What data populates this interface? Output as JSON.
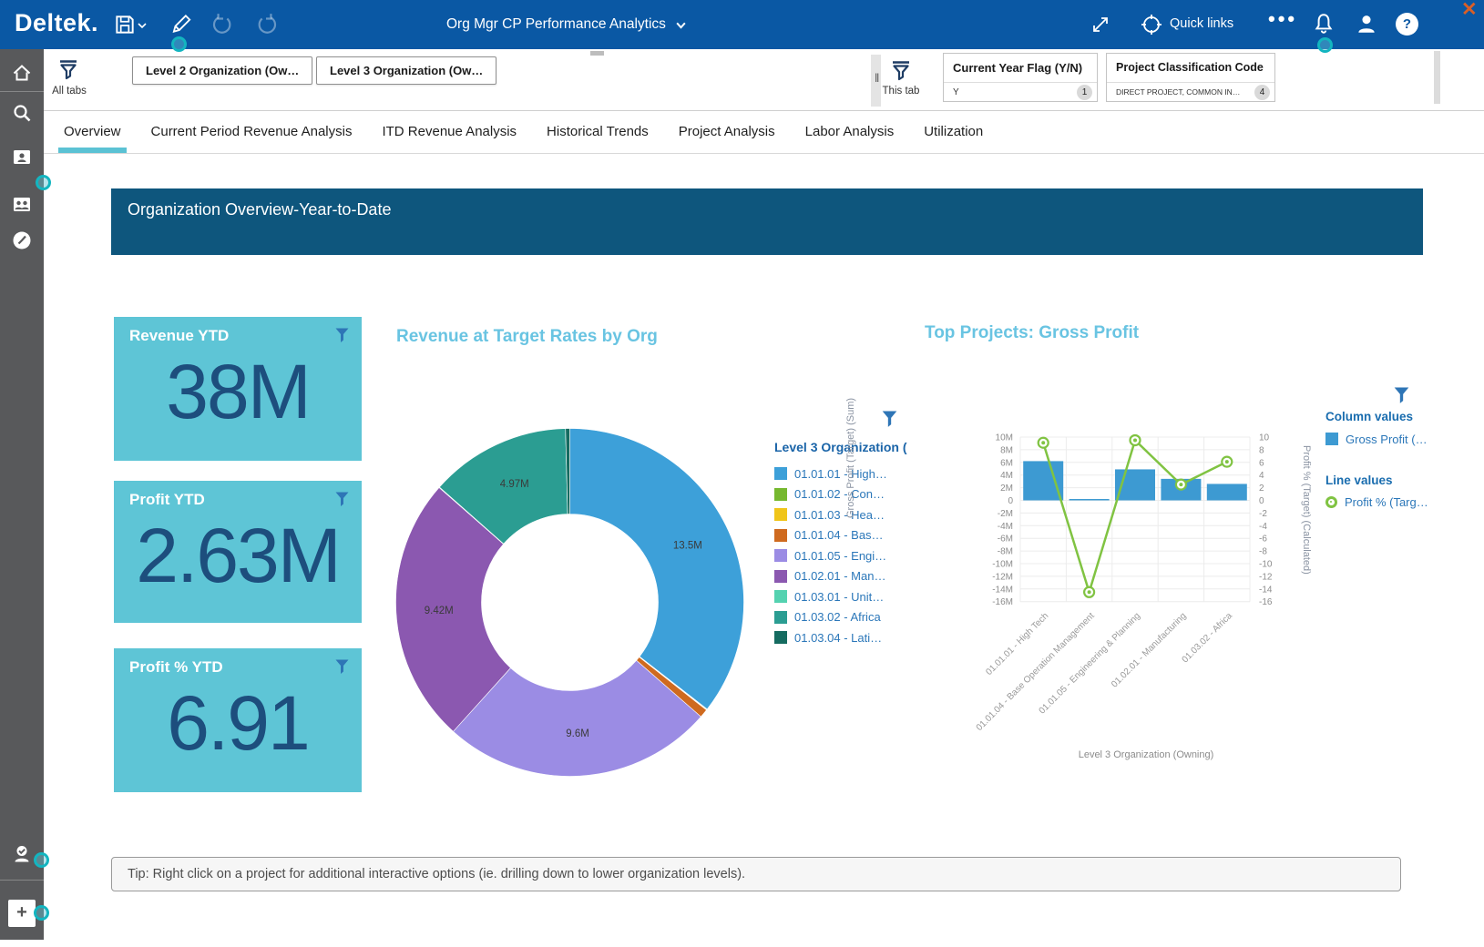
{
  "topbar": {
    "logo": "Deltek.",
    "title": "Org Mgr CP Performance Analytics",
    "quick_links_label": "Quick links"
  },
  "filter_bar": {
    "all_tabs_label": "All tabs",
    "this_tab_label": "This tab",
    "chips": [
      "Level 2 Organization (Ow…",
      "Level 3 Organization (Ow…"
    ],
    "cards": [
      {
        "title": "Current Year Flag (Y/N)",
        "value": "Y",
        "count": "1"
      },
      {
        "title": "Project Classification Code",
        "value": "DIRECT PROJECT, COMMON IN…",
        "count": "4"
      }
    ]
  },
  "tabs": {
    "active_index": 0,
    "items": [
      "Overview",
      "Current Period Revenue Analysis",
      "ITD Revenue Analysis",
      "Historical Trends",
      "Project Analysis",
      "Labor Analysis",
      "Utilization"
    ]
  },
  "banner": {
    "title": "Organization Overview-Year-to-Date"
  },
  "kpis": [
    {
      "label": "Revenue YTD",
      "value": "38M"
    },
    {
      "label": "Profit YTD",
      "value": "2.63M"
    },
    {
      "label": "Profit % YTD",
      "value": "6.91"
    }
  ],
  "tip": {
    "text": "Tip:  Right click on a project for additional interactive options (ie. drilling down to lower organization levels)."
  },
  "colors": {
    "topbar_blue": "#0a58a4",
    "banner_blue": "#0e567d",
    "kpi_teal": "#5ec5d6",
    "kpi_value_navy": "#1d4e7d",
    "accent_teal_underline": "#5bc2d4",
    "chart_title_blue": "#69c4e2",
    "legend_text_blue": "#2b77b9",
    "bar_blue": "#3d9ad2",
    "line_green": "#80c342",
    "funnel_blue": "#2e75b6",
    "sidebar_gray": "#58595b",
    "coach_mark_teal": "#13b5c0",
    "close_orange": "#d95f27"
  },
  "chart_data": [
    {
      "type": "pie",
      "title": "Revenue at Target Rates by Org",
      "legend_title": "Level 3 Organization (",
      "legend_position": "right",
      "donut": true,
      "segments": [
        {
          "label": "01.01.01 - High…",
          "value": 13.5,
          "display": "13.5M",
          "color": "#3da0d9"
        },
        {
          "label": "01.01.02 - Con…",
          "value": 0.02,
          "display": "",
          "color": "#76b82f"
        },
        {
          "label": "01.01.03 - Hea…",
          "value": 0.02,
          "display": "",
          "color": "#f0c51a"
        },
        {
          "label": "01.01.04 - Bas…",
          "value": 0.3,
          "display": "",
          "color": "#cf6a1f"
        },
        {
          "label": "01.01.05 - Engi…",
          "value": 9.6,
          "display": "9.6M",
          "color": "#9b8ce4"
        },
        {
          "label": "01.02.01 - Man…",
          "value": 9.42,
          "display": "9.42M",
          "color": "#8b58b0"
        },
        {
          "label": "01.03.01 - Unit…",
          "value": 0.02,
          "display": "",
          "color": "#54d2b0"
        },
        {
          "label": "01.03.02 - Africa",
          "value": 4.97,
          "display": "4.97M",
          "color": "#2b9d92"
        },
        {
          "label": "01.03.04 - Lati…",
          "value": 0.15,
          "display": "",
          "color": "#156b60"
        }
      ],
      "unit": "M"
    },
    {
      "type": "bar",
      "title": "Top Projects: Gross Profit",
      "categories": [
        "01.01.01 - High Tech",
        "01.01.04 - Base Operation Management",
        "01.01.05 - Engineering & Planning",
        "01.02.01 - Manufacturing",
        "01.03.02 - Africa"
      ],
      "series": [
        {
          "name": "Gross Profit (Target) (Sum)",
          "kind": "bar",
          "axis": "left",
          "unit": "M",
          "color": "#3d9ad2",
          "values": [
            6.2,
            0.15,
            4.9,
            3.4,
            2.6
          ]
        },
        {
          "name": "Profit % (Target) (Calculated)",
          "kind": "line",
          "axis": "right",
          "color": "#80c342",
          "values": [
            9.1,
            -14.5,
            9.5,
            2.5,
            6.1
          ]
        }
      ],
      "xlabel": "Level 3 Organization (Owning)",
      "ylabel_left": "Gross Profit (Target) (Sum)",
      "ylabel_right": "Profit % (Target) (Calculated)",
      "ylim": [
        -16,
        10
      ],
      "ytick_step": 2,
      "grid": true,
      "legend": {
        "column_header": "Column values",
        "column_label": "Gross Profit (…",
        "line_header": "Line values",
        "line_label": "Profit % (Targ…"
      }
    }
  ]
}
